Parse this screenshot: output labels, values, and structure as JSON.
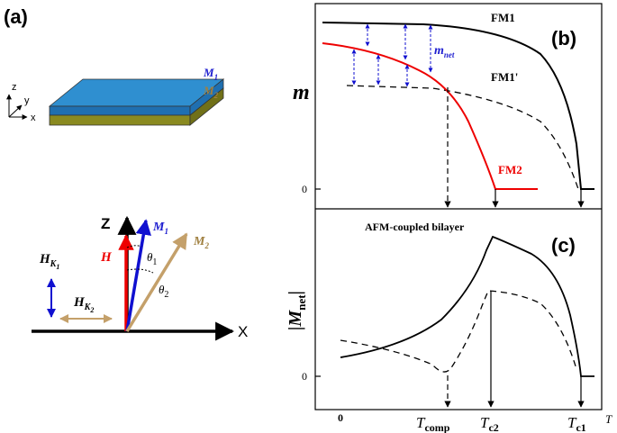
{
  "panel_a": {
    "label": "(a)",
    "axes": {
      "z": "z",
      "y": "y",
      "x": "x"
    },
    "layers": [
      {
        "symbol": "M",
        "sub": "1"
      },
      {
        "symbol": "M",
        "sub": "2"
      }
    ],
    "vectors": {
      "z": "Z",
      "x": "X",
      "h": "H",
      "m1": {
        "symbol": "M",
        "sub": "1"
      },
      "m2": {
        "symbol": "M",
        "sub": "2"
      },
      "theta1": {
        "symbol": "θ",
        "sub": "1"
      },
      "theta2": {
        "symbol": "θ",
        "sub": "2"
      },
      "hk1": {
        "symbol": "H",
        "sub": "K",
        "subsub": "1"
      },
      "hk2": {
        "symbol": "H",
        "sub": "K",
        "subsub": "2"
      }
    }
  },
  "panel_b": {
    "label": "(b)",
    "y_label": "m",
    "zero": "0",
    "fm1": "FM1",
    "fm1p": "FM1'",
    "fm2": "FM2",
    "mnet": {
      "symbol": "m",
      "sub": "net"
    }
  },
  "panel_c": {
    "label": "(c)",
    "title": "AFM-coupled bilayer",
    "y_label": {
      "symbol": "|M",
      "sub": "net",
      "tail": "|"
    },
    "zero": "0"
  },
  "x_axis": {
    "zero": "0",
    "tcomp": {
      "symbol": "T",
      "sub": "comp"
    },
    "tc2": {
      "symbol": "T",
      "sub": "c2"
    },
    "tc1": {
      "symbol": "T",
      "sub": "c1"
    },
    "t": "T"
  }
}
